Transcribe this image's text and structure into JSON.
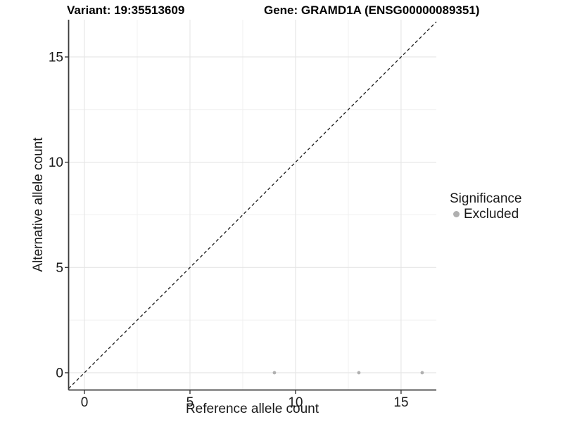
{
  "chart_data": {
    "type": "scatter",
    "titles": {
      "left": "Variant: 19:35513609",
      "right": "Gene: GRAMD1A (ENSG00000089351)"
    },
    "xlabel": "Reference allele count",
    "ylabel": "Alternative allele count",
    "xlim": [
      -0.75,
      16.67
    ],
    "ylim": [
      -0.82,
      16.77
    ],
    "x_ticks": [
      0,
      5,
      10,
      15
    ],
    "y_ticks": [
      0,
      5,
      10,
      15
    ],
    "x_minor_ticks": [
      2.5,
      7.5,
      12.5
    ],
    "y_minor_ticks": [
      2.5,
      7.5,
      12.5
    ],
    "grid": {
      "major_color": "#e5e5e5",
      "minor_color": "#f0f0f0"
    },
    "axis_color": "#3a3a3a",
    "tick_label_color": "#1a1a1a",
    "identity_line": {
      "style": "dashed",
      "color": "#1a1a1a"
    },
    "series": [
      {
        "name": "Excluded",
        "color": "#b0b0b0",
        "points": [
          {
            "x": 9,
            "y": 0
          },
          {
            "x": 13,
            "y": 0
          },
          {
            "x": 16,
            "y": 0
          }
        ]
      }
    ],
    "legend": {
      "title": "Significance",
      "position": "right",
      "items": [
        {
          "label": "Excluded",
          "color": "#b0b0b0"
        }
      ]
    }
  }
}
